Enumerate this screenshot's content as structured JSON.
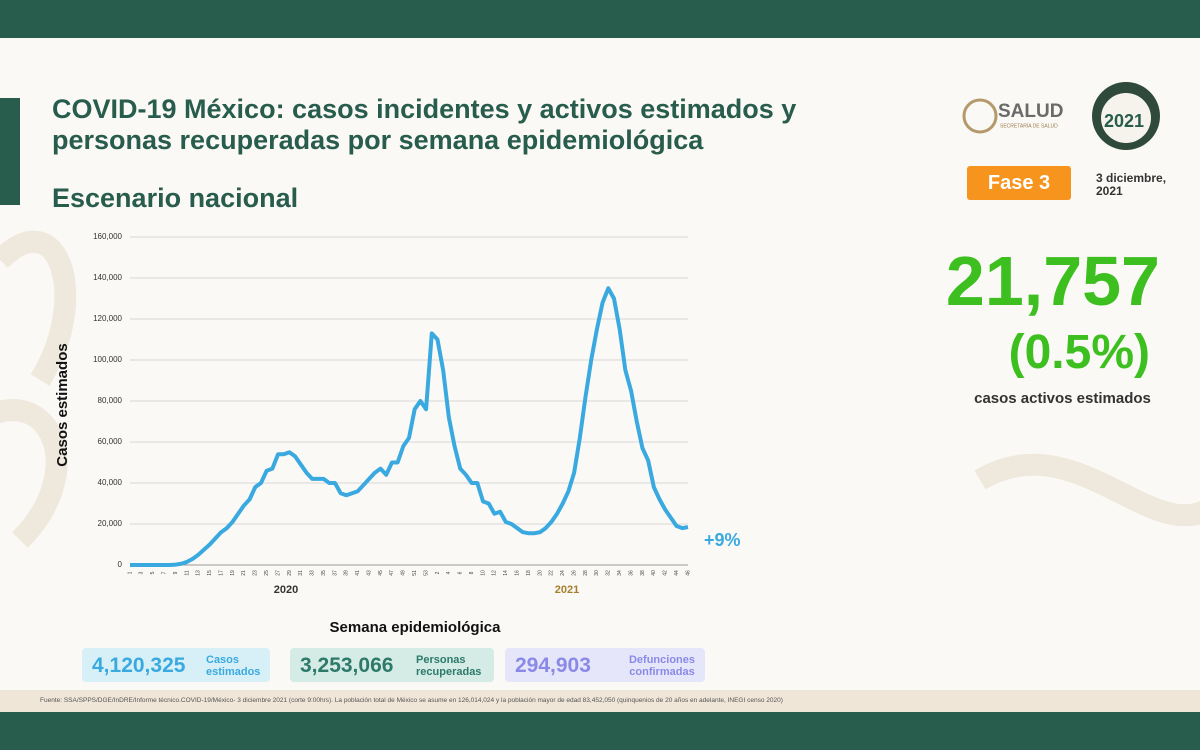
{
  "header": {
    "title": "COVID-19 México: casos incidentes y activos estimados y personas recuperadas por semana epidemiológica",
    "subtitle": "Escenario nacional",
    "phase": "Fase 3",
    "date": "3 diciembre, 2021",
    "logo_salud": "SALUD",
    "logo_salud_sub": "SECRETARÍA DE SALUD",
    "logo_year": "2021"
  },
  "kpi": {
    "value": "21,757",
    "percent": "(0.5%)",
    "label": "casos activos estimados"
  },
  "stats": [
    {
      "value": "4,120,325",
      "label": "Casos estimados"
    },
    {
      "value": "3,253,066",
      "label": "Personas recuperadas"
    },
    {
      "value": "294,903",
      "label": "Defunciones confirmadas"
    }
  ],
  "footnote": "Fuente: SSA/SPPS/DGE/InDRE/Informe técnico.COVID-19/México- 3 diciembre 2021 (corte 9:00hrs). La población total de México se asume en 126,014,024 y la población mayor de edad 83,452,050 (quinquenios de 20 años en adelante, INEGI censo 2020)",
  "chart_data": {
    "type": "line",
    "y_label": "Casos estimados",
    "x_label": "Semana epidemiológica",
    "year_labels": [
      "2020",
      "2021"
    ],
    "change_label": "+9%",
    "categories": [
      "1",
      null,
      "3",
      null,
      "5",
      null,
      "7",
      null,
      "9",
      null,
      "11",
      null,
      "13",
      null,
      "15",
      null,
      "17",
      null,
      "19",
      null,
      "21",
      null,
      "23",
      null,
      "25",
      null,
      "27",
      null,
      "29",
      null,
      "31",
      null,
      "33",
      null,
      "35",
      null,
      "37",
      null,
      "39",
      null,
      "41",
      null,
      "43",
      null,
      "45",
      null,
      "47",
      null,
      "49",
      null,
      "51",
      null,
      "53",
      null,
      "2",
      null,
      "4",
      null,
      "6",
      null,
      "8",
      null,
      "10",
      null,
      "12",
      null,
      "14",
      null,
      "16",
      null,
      "18",
      null,
      "20",
      null,
      "22",
      null,
      "24",
      null,
      "26",
      null,
      "28",
      null,
      "30",
      null,
      "32",
      null,
      "34",
      null,
      "36",
      null,
      "38",
      null,
      "40",
      null,
      "42",
      null,
      "44",
      null,
      "46"
    ],
    "series": [
      {
        "name": "Casos estimados",
        "color": "#3aa9e0",
        "values": [
          0,
          0,
          0,
          0,
          0,
          0,
          0,
          0,
          200,
          600,
          1500,
          3000,
          5000,
          7500,
          10000,
          13000,
          16000,
          18000,
          21000,
          25000,
          29000,
          32000,
          38000,
          40000,
          46000,
          47000,
          54000,
          54000,
          55000,
          53000,
          49000,
          45000,
          42000,
          42000,
          42000,
          40000,
          40000,
          35000,
          34000,
          35000,
          36000,
          39000,
          42000,
          45000,
          47000,
          44000,
          50000,
          50000,
          58000,
          62000,
          76000,
          80000,
          76000,
          113000,
          110000,
          95000,
          72000,
          58000,
          47000,
          44000,
          40000,
          40000,
          31000,
          30000,
          25000,
          26000,
          21000,
          20000,
          18000,
          16000,
          15500,
          15500,
          16000,
          18000,
          21000,
          25000,
          30000,
          36000,
          45000,
          62000,
          82000,
          100000,
          115000,
          128000,
          135000,
          130000,
          115000,
          95000,
          85000,
          70000,
          57000,
          51000,
          38000,
          32000,
          27000,
          23000,
          19000,
          18000,
          18500
        ]
      }
    ],
    "ylim": [
      0,
      160000
    ],
    "yticks": [
      0,
      {
        "value": 20000,
        "label": "20,000"
      },
      {
        "value": 40000,
        "label": "40,000"
      },
      {
        "value": 60000,
        "label": "60,000"
      },
      {
        "value": 80000,
        "label": "80,000"
      },
      {
        "value": 100000,
        "label": "100,000"
      },
      {
        "value": 120000,
        "label": "120,000"
      },
      {
        "value": 140000,
        "label": "140,000"
      },
      {
        "value": 160000,
        "label": "160,000"
      }
    ],
    "grid": true
  }
}
